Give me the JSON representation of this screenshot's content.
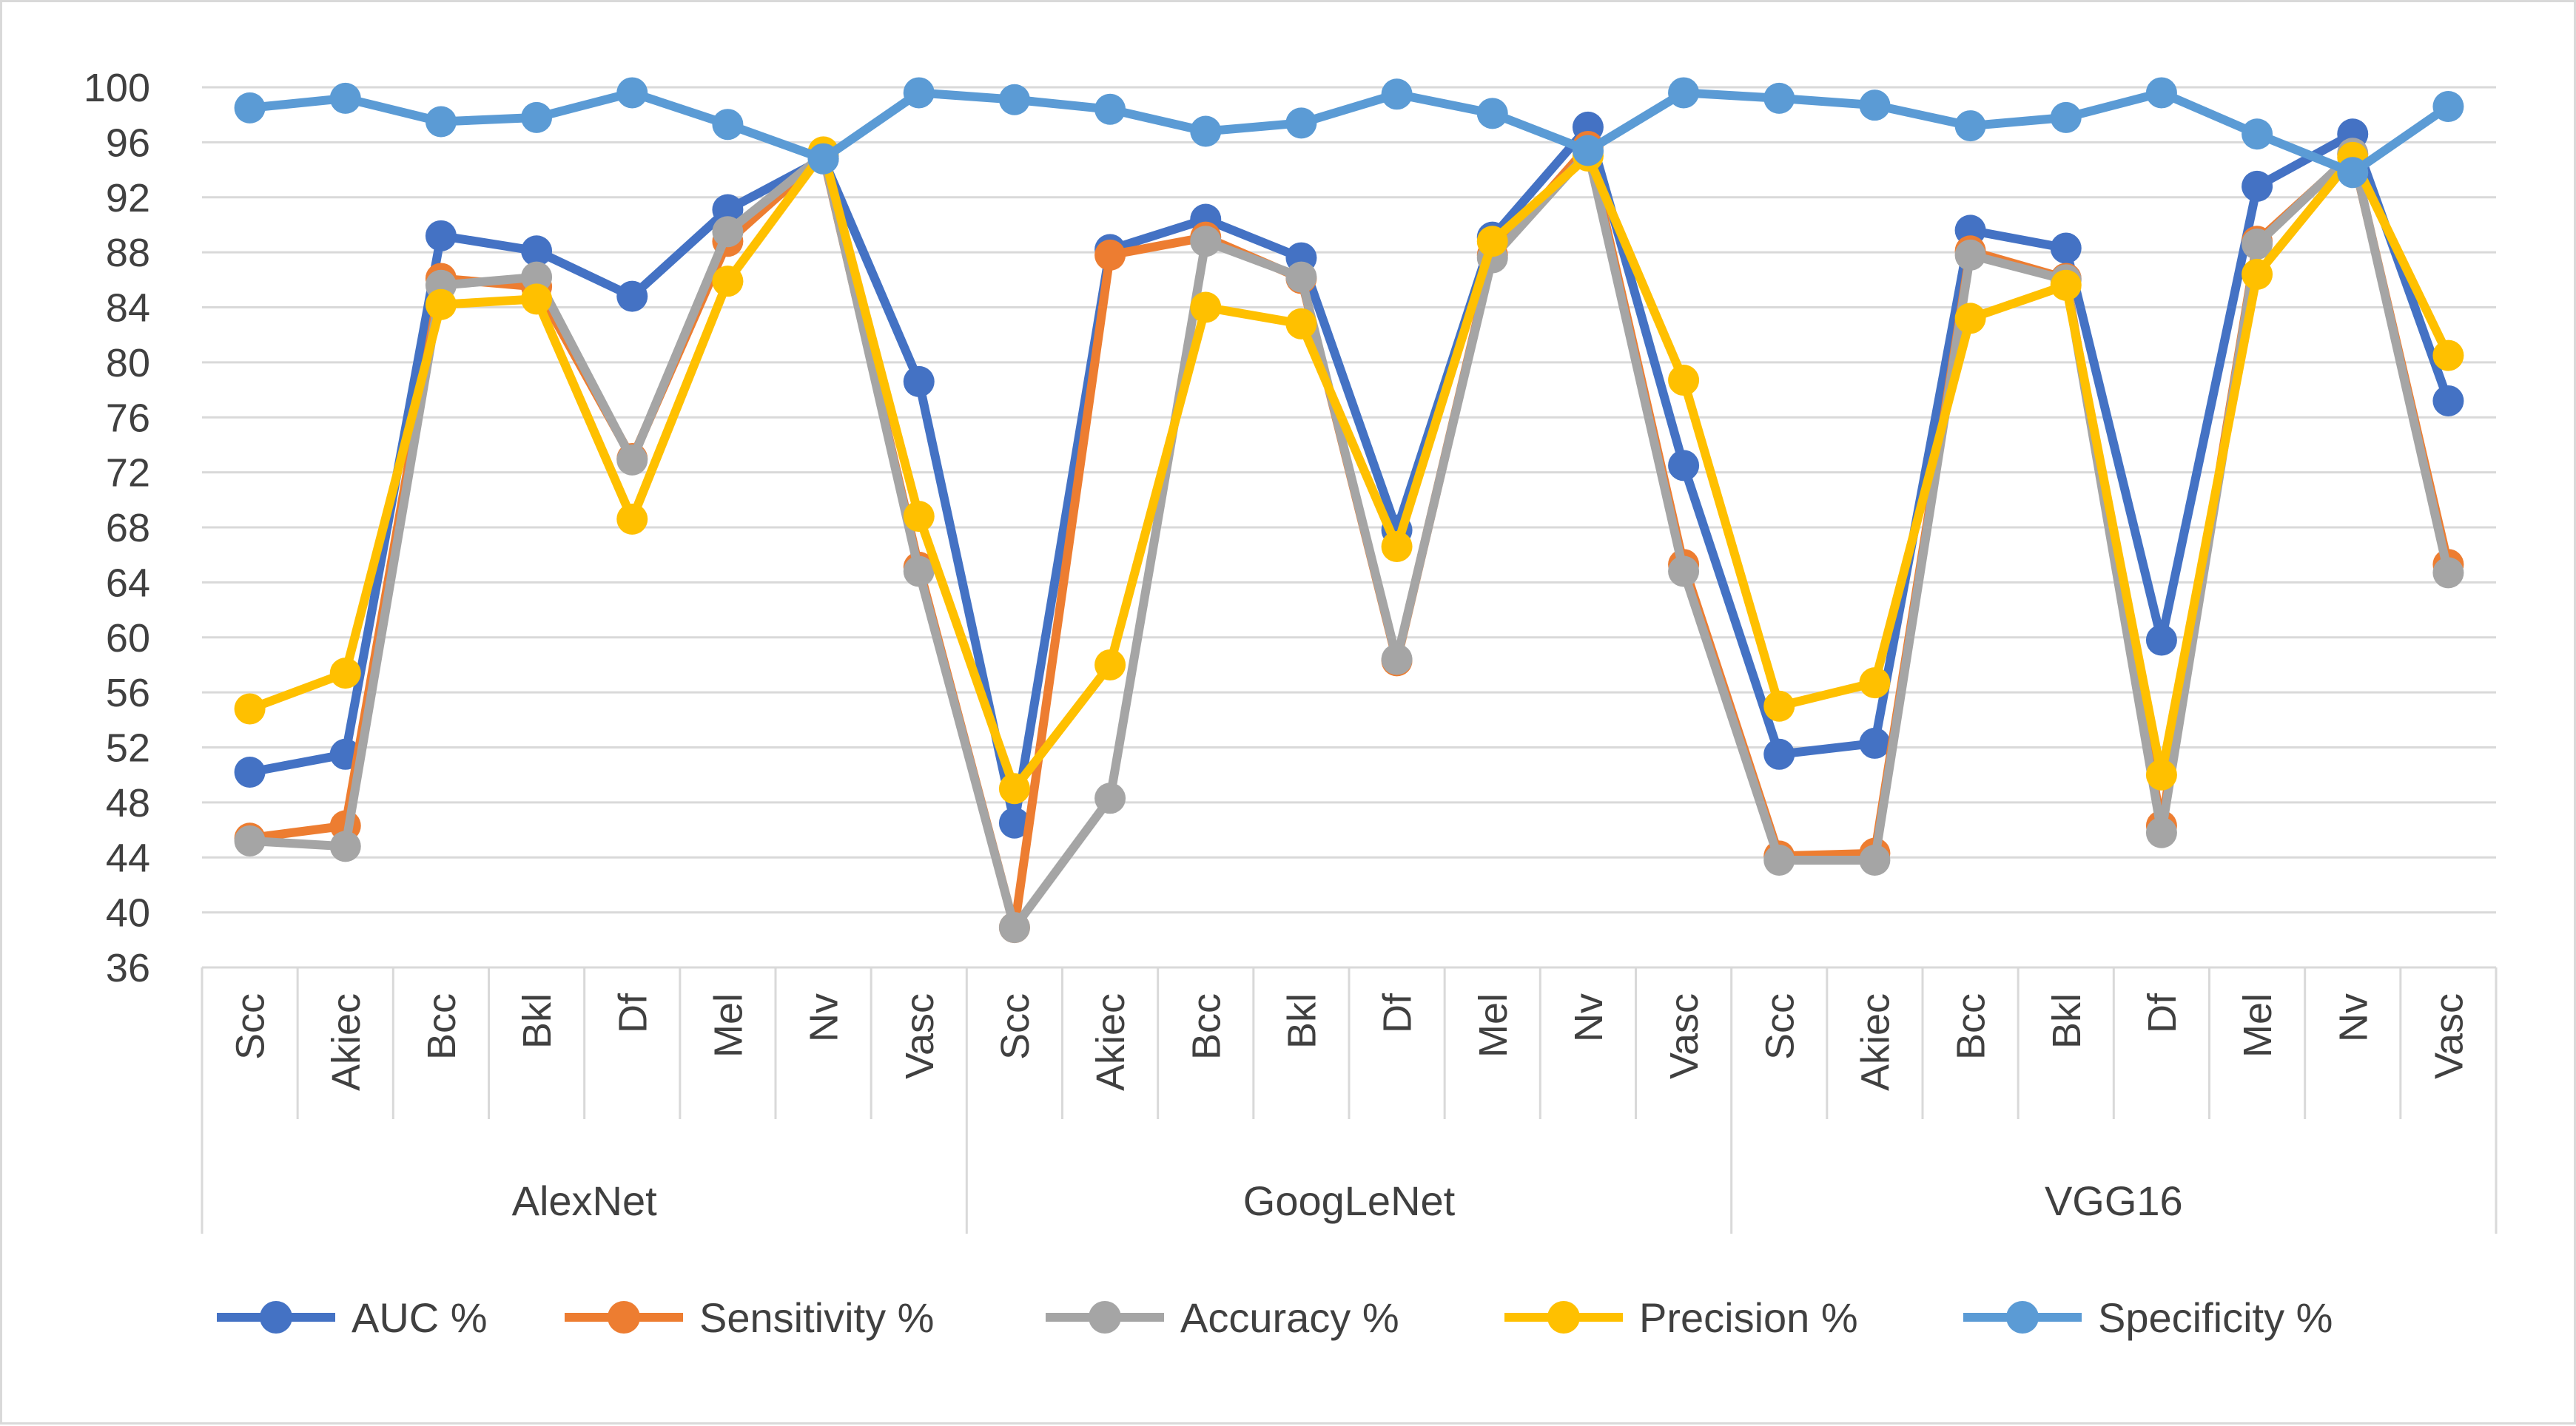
{
  "chart_data": {
    "type": "line",
    "title": "",
    "xlabel": "",
    "ylabel": "",
    "ylim": [
      36,
      100
    ],
    "yticks": [
      36,
      40,
      44,
      48,
      52,
      56,
      60,
      64,
      68,
      72,
      76,
      80,
      84,
      88,
      92,
      96,
      100
    ],
    "grid": true,
    "legend_position": "bottom",
    "groups": [
      {
        "name": "AlexNet",
        "categories": [
          "Scc",
          "Akiec",
          "Bcc",
          "Bkl",
          "Df",
          "Mel",
          "Nv",
          "Vasc"
        ]
      },
      {
        "name": "GoogLeNet",
        "categories": [
          "Scc",
          "Akiec",
          "Bcc",
          "Bkl",
          "Df",
          "Mel",
          "Nv",
          "Vasc"
        ]
      },
      {
        "name": "VGG16",
        "categories": [
          "Scc",
          "Akiec",
          "Bcc",
          "Bkl",
          "Df",
          "Mel",
          "Nv",
          "Vasc"
        ]
      }
    ],
    "series": [
      {
        "name": "AUC %",
        "color": "#4472C4",
        "values": [
          50.2,
          51.5,
          89.2,
          88.1,
          84.8,
          91.1,
          94.8,
          78.6,
          46.5,
          88.2,
          90.4,
          87.6,
          67.8,
          89.1,
          97.1,
          72.5,
          51.5,
          52.3,
          89.6,
          88.3,
          59.8,
          92.8,
          96.6,
          77.2
        ]
      },
      {
        "name": "Sensitivity %",
        "color": "#ED7D31",
        "values": [
          45.4,
          46.3,
          86.1,
          85.5,
          73.0,
          88.8,
          95.0,
          65.1,
          38.9,
          87.8,
          89.1,
          86.1,
          58.3,
          87.8,
          95.7,
          65.3,
          44.1,
          44.3,
          88.1,
          86.1,
          46.3,
          88.8,
          95.1,
          65.3
        ]
      },
      {
        "name": "Accuracy %",
        "color": "#A5A5A5",
        "values": [
          45.2,
          44.8,
          85.6,
          86.2,
          72.9,
          89.5,
          95.1,
          64.8,
          38.9,
          48.3,
          88.8,
          86.2,
          58.4,
          87.6,
          95.3,
          64.8,
          43.8,
          43.8,
          87.8,
          86.0,
          45.8,
          88.6,
          95.2,
          64.7
        ]
      },
      {
        "name": "Precision %",
        "color": "#FFC000",
        "values": [
          54.8,
          57.4,
          84.2,
          84.6,
          68.6,
          85.9,
          95.3,
          68.8,
          49.0,
          58.0,
          84.0,
          82.8,
          66.6,
          88.8,
          95.0,
          78.7,
          55.0,
          56.7,
          83.2,
          85.6,
          50.0,
          86.4,
          94.9,
          80.5
        ]
      },
      {
        "name": "Specificity %",
        "color": "#5B9BD5",
        "values": [
          98.5,
          99.2,
          97.5,
          97.8,
          99.6,
          97.3,
          94.8,
          99.6,
          99.1,
          98.4,
          96.8,
          97.4,
          99.5,
          98.1,
          95.4,
          99.6,
          99.2,
          98.7,
          97.2,
          97.8,
          99.6,
          96.6,
          93.8,
          98.6
        ]
      }
    ]
  }
}
